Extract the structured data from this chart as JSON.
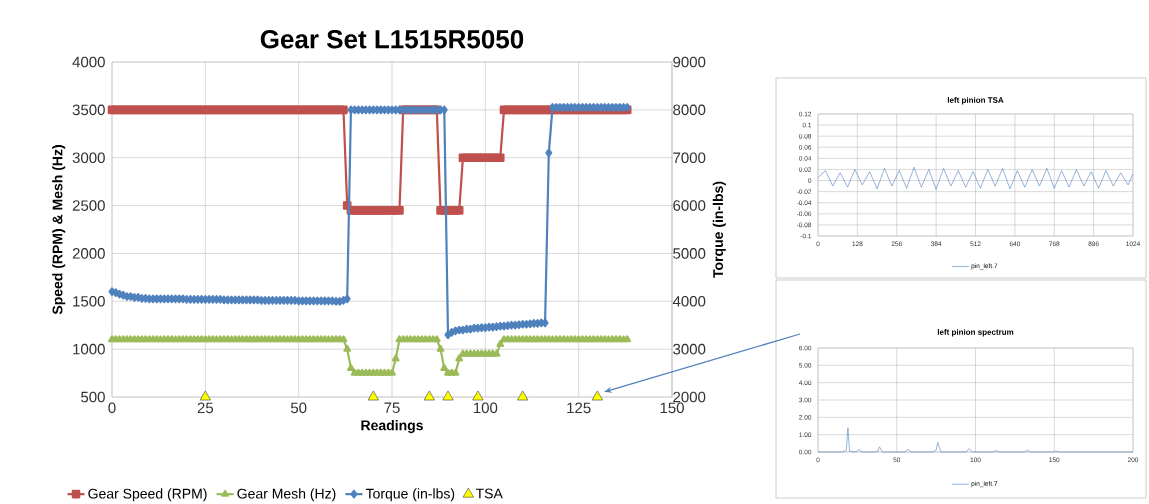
{
  "chart_data": [
    {
      "type": "line",
      "title": "Gear Set L1515R5050",
      "xlabel": "Readings",
      "ylabel": "Speed (RPM) & Mesh (Hz)",
      "y2label": "Torque (in-lbs)",
      "x": [
        0,
        1,
        2,
        3,
        4,
        5,
        6,
        7,
        8,
        9,
        10,
        11,
        12,
        13,
        14,
        15,
        16,
        17,
        18,
        19,
        20,
        21,
        22,
        23,
        24,
        25,
        26,
        27,
        28,
        29,
        30,
        31,
        32,
        33,
        34,
        35,
        36,
        37,
        38,
        39,
        40,
        41,
        42,
        43,
        44,
        45,
        46,
        47,
        48,
        49,
        50,
        51,
        52,
        53,
        54,
        55,
        56,
        57,
        58,
        59,
        60,
        61,
        62,
        63,
        64,
        65,
        66,
        67,
        68,
        69,
        70,
        71,
        72,
        73,
        74,
        75,
        76,
        77,
        78,
        79,
        80,
        81,
        82,
        83,
        84,
        85,
        86,
        87,
        88,
        89,
        90,
        91,
        92,
        93,
        94,
        95,
        96,
        97,
        98,
        99,
        100,
        101,
        102,
        103,
        104,
        105,
        106,
        107,
        108,
        109,
        110,
        111,
        112,
        113,
        114,
        115,
        116,
        117,
        118,
        119,
        120,
        121,
        122,
        123,
        124,
        125,
        126,
        127,
        128,
        129,
        130,
        131,
        132,
        133,
        134,
        135,
        136,
        137,
        138
      ],
      "series": [
        {
          "name": "Gear Speed (RPM)",
          "color": "#c0504d",
          "marker": "square",
          "values": [
            3500,
            3500,
            3500,
            3500,
            3500,
            3500,
            3500,
            3500,
            3500,
            3500,
            3500,
            3500,
            3500,
            3500,
            3500,
            3500,
            3500,
            3500,
            3500,
            3500,
            3500,
            3500,
            3500,
            3500,
            3500,
            3500,
            3500,
            3500,
            3500,
            3500,
            3500,
            3500,
            3500,
            3500,
            3500,
            3500,
            3500,
            3500,
            3500,
            3500,
            3500,
            3500,
            3500,
            3500,
            3500,
            3500,
            3500,
            3500,
            3500,
            3500,
            3500,
            3500,
            3500,
            3500,
            3500,
            3500,
            3500,
            3500,
            3500,
            3500,
            3500,
            3500,
            3500,
            2500,
            2450,
            2450,
            2450,
            2450,
            2450,
            2450,
            2450,
            2450,
            2450,
            2450,
            2450,
            2450,
            2450,
            2450,
            3500,
            3500,
            3500,
            3500,
            3500,
            3500,
            3500,
            3500,
            3500,
            3500,
            2450,
            2450,
            2450,
            2450,
            2450,
            2450,
            3000,
            3000,
            3000,
            3000,
            3000,
            3000,
            3000,
            3000,
            3000,
            3000,
            3000,
            3500,
            3500,
            3500,
            3500,
            3500,
            3500,
            3500,
            3500,
            3500,
            3500,
            3500,
            3500,
            3500,
            3500,
            3500,
            3500,
            3500,
            3500,
            3500,
            3500,
            3500,
            3500,
            3500,
            3500,
            3500,
            3500,
            3500,
            3500,
            3500,
            3500,
            3500,
            3500,
            3500,
            3500
          ]
        },
        {
          "name": "Gear Mesh (Hz)",
          "color": "#9bbb59",
          "marker": "triangle",
          "values": [
            1100,
            1100,
            1100,
            1100,
            1100,
            1100,
            1100,
            1100,
            1100,
            1100,
            1100,
            1100,
            1100,
            1100,
            1100,
            1100,
            1100,
            1100,
            1100,
            1100,
            1100,
            1100,
            1100,
            1100,
            1100,
            1100,
            1100,
            1100,
            1100,
            1100,
            1100,
            1100,
            1100,
            1100,
            1100,
            1100,
            1100,
            1100,
            1100,
            1100,
            1100,
            1100,
            1100,
            1100,
            1100,
            1100,
            1100,
            1100,
            1100,
            1100,
            1100,
            1100,
            1100,
            1100,
            1100,
            1100,
            1100,
            1100,
            1100,
            1100,
            1100,
            1100,
            1100,
            1000,
            800,
            750,
            750,
            750,
            750,
            750,
            750,
            750,
            750,
            750,
            750,
            750,
            900,
            1100,
            1100,
            1100,
            1100,
            1100,
            1100,
            1100,
            1100,
            1100,
            1100,
            1100,
            1000,
            800,
            750,
            750,
            750,
            900,
            950,
            950,
            950,
            950,
            950,
            950,
            950,
            950,
            950,
            950,
            1050,
            1100,
            1100,
            1100,
            1100,
            1100,
            1100,
            1100,
            1100,
            1100,
            1100,
            1100,
            1100,
            1100,
            1100,
            1100,
            1100,
            1100,
            1100,
            1100,
            1100,
            1100,
            1100,
            1100,
            1100,
            1100,
            1100,
            1100,
            1100,
            1100,
            1100,
            1100,
            1100,
            1100,
            1100
          ]
        },
        {
          "name": "Torque (in-lbs)",
          "color": "#4f81bd",
          "marker": "diamond",
          "axis": "y2",
          "values": [
            4200,
            4180,
            4150,
            4130,
            4100,
            4100,
            4080,
            4080,
            4060,
            4060,
            4050,
            4050,
            4050,
            4050,
            4050,
            4050,
            4050,
            4050,
            4050,
            4050,
            4040,
            4040,
            4040,
            4040,
            4040,
            4040,
            4040,
            4040,
            4040,
            4040,
            4030,
            4030,
            4030,
            4030,
            4030,
            4030,
            4030,
            4030,
            4030,
            4030,
            4020,
            4020,
            4020,
            4020,
            4020,
            4020,
            4020,
            4020,
            4020,
            4020,
            4010,
            4010,
            4010,
            4010,
            4010,
            4010,
            4010,
            4010,
            4010,
            4010,
            4000,
            4000,
            4020,
            4050,
            8000,
            8000,
            8000,
            8000,
            8000,
            8000,
            8000,
            8000,
            8000,
            8000,
            8000,
            8000,
            8000,
            8000,
            8000,
            8000,
            8000,
            8000,
            8000,
            8000,
            8000,
            8000,
            8000,
            8000,
            8000,
            8000,
            3300,
            3350,
            3380,
            3400,
            3400,
            3420,
            3420,
            3440,
            3440,
            3450,
            3450,
            3460,
            3460,
            3470,
            3480,
            3480,
            3490,
            3500,
            3500,
            3510,
            3520,
            3520,
            3530,
            3540,
            3540,
            3550,
            3550,
            7100,
            8050,
            8050,
            8050,
            8050,
            8050,
            8050,
            8050,
            8050,
            8050,
            8050,
            8050,
            8050,
            8050,
            8050,
            8050,
            8050,
            8050,
            8050,
            8050,
            8050,
            8050
          ]
        },
        {
          "name": "TSA",
          "type": "scatter",
          "color": "#ffff00",
          "marker": "triangle",
          "x": [
            25,
            70,
            85,
            90,
            98,
            110,
            130
          ],
          "values": [
            500,
            500,
            500,
            500,
            500,
            500,
            500
          ]
        }
      ],
      "xlim": [
        0,
        150
      ],
      "xticks": [
        0,
        25,
        50,
        75,
        100,
        125,
        150
      ],
      "ylim": [
        500,
        4000
      ],
      "yticks": [
        500,
        1000,
        1500,
        2000,
        2500,
        3000,
        3500,
        4000
      ],
      "y2lim": [
        2000,
        9000
      ],
      "y2ticks": [
        2000,
        3000,
        4000,
        5000,
        6000,
        7000,
        8000,
        9000
      ],
      "grid": true,
      "legend": "bottom"
    },
    {
      "type": "line",
      "title": "left pinion TSA",
      "series": [
        {
          "name": "pin_left.7",
          "color": "#4f81bd",
          "x": [
            0,
            24,
            48,
            72,
            96,
            120,
            144,
            168,
            192,
            216,
            240,
            264,
            288,
            312,
            336,
            360,
            384,
            408,
            432,
            456,
            480,
            504,
            528,
            552,
            576,
            600,
            624,
            648,
            672,
            696,
            720,
            744,
            768,
            792,
            816,
            840,
            864,
            888,
            912,
            936,
            960,
            984,
            1008,
            1024
          ],
          "values": [
            0.005,
            0.018,
            -0.01,
            0.014,
            -0.012,
            0.02,
            -0.008,
            0.016,
            -0.015,
            0.022,
            -0.01,
            0.018,
            -0.014,
            0.024,
            -0.012,
            0.02,
            -0.016,
            0.022,
            -0.01,
            0.018,
            -0.012,
            0.016,
            -0.014,
            0.02,
            -0.01,
            0.022,
            -0.015,
            0.018,
            -0.012,
            0.02,
            -0.01,
            0.022,
            -0.014,
            0.018,
            -0.012,
            0.02,
            -0.01,
            0.016,
            -0.014,
            0.018,
            -0.01,
            0.014,
            -0.008,
            0.012
          ]
        }
      ],
      "xlim": [
        0,
        1024
      ],
      "xticks": [
        0,
        128,
        256,
        384,
        512,
        640,
        768,
        896,
        1024
      ],
      "ylim": [
        -0.1,
        0.12
      ],
      "yticks": [
        -0.1,
        -0.08,
        -0.06,
        -0.04,
        -0.02,
        0,
        0.02,
        0.04,
        0.06,
        0.08,
        0.1,
        0.12
      ],
      "grid": true,
      "legend": "bottom"
    },
    {
      "type": "line",
      "title": "left pinion spectrum",
      "series": [
        {
          "name": "pin_left.7",
          "color": "#4f81bd",
          "x": [
            0,
            15,
            18,
            19,
            20,
            23,
            25,
            26,
            28,
            36,
            38,
            39,
            41,
            55,
            57,
            59,
            73,
            75,
            76,
            78,
            94,
            96,
            98,
            111,
            113,
            115,
            131,
            133,
            135,
            150,
            151,
            153,
            200
          ],
          "values": [
            0,
            0,
            0.1,
            1.4,
            0.05,
            0,
            0.05,
            0.15,
            0,
            0,
            0.05,
            0.3,
            0,
            0,
            0.15,
            0,
            0,
            0.1,
            0.55,
            0,
            0,
            0.2,
            0,
            0,
            0.08,
            0,
            0,
            0.1,
            0,
            0,
            0.05,
            0,
            0
          ]
        }
      ],
      "xlim": [
        0,
        200
      ],
      "xticks": [
        0,
        50,
        100,
        150,
        200
      ],
      "ylim": [
        0,
        6
      ],
      "yticks": [
        {
          "value": 0,
          "label": "0.00"
        },
        {
          "value": 1,
          "label": "1.00"
        },
        {
          "value": 2,
          "label": "2.00"
        },
        {
          "value": 3,
          "label": "3.00"
        },
        {
          "value": 4,
          "label": "4.00"
        },
        {
          "value": 5,
          "label": "5.00"
        },
        {
          "value": 6,
          "label": "6.00"
        }
      ],
      "grid": true,
      "legend": "bottom"
    }
  ]
}
